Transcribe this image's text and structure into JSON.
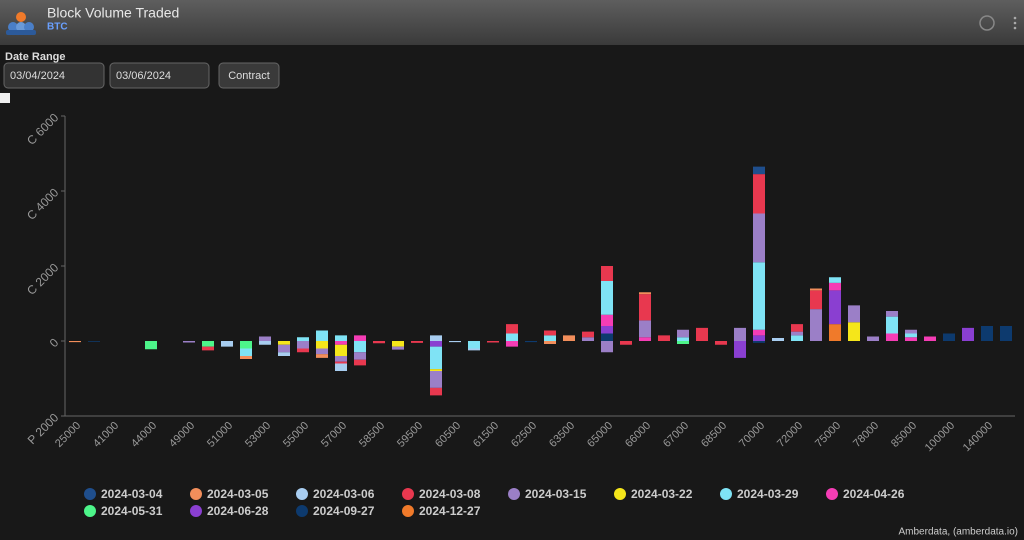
{
  "header": {
    "title": "Block Volume Traded",
    "subtitle": "BTC"
  },
  "controls": {
    "label": "Date Range",
    "start": "03/04/2024",
    "end": "03/06/2024",
    "button": "Contract"
  },
  "footer": "Amberdata, (amberdata.io)",
  "chart_data": {
    "type": "bar",
    "stacked": true,
    "categories": [
      "25000",
      null,
      "41000",
      null,
      "44000",
      null,
      "49000",
      null,
      "51000",
      null,
      "53000",
      null,
      "55000",
      null,
      "57000",
      null,
      "58500",
      null,
      "59500",
      null,
      "60500",
      null,
      "61500",
      null,
      "62500",
      null,
      "63500",
      null,
      "65000",
      null,
      "66000",
      null,
      "67000",
      null,
      "68500",
      null,
      "70000",
      null,
      "72000",
      null,
      "75000",
      null,
      "78000",
      null,
      "85000",
      null,
      "100000",
      null,
      "140000",
      null
    ],
    "ylim": [
      -2000,
      6000
    ],
    "yticks": [
      {
        "value": -2000,
        "label": "P 2000"
      },
      0,
      {
        "value": 2000,
        "label": "C 2000"
      },
      {
        "value": 4000,
        "label": "C 4000"
      },
      {
        "value": 6000,
        "label": "C 6000"
      }
    ],
    "grid": false,
    "legend": "bottom",
    "series": [
      {
        "name": "2024-03-04",
        "color": "#1f4e8c",
        "values": [
          0,
          0,
          0,
          0,
          0,
          0,
          0,
          0,
          0,
          0,
          0,
          0,
          0,
          0,
          0,
          0,
          0,
          0,
          0,
          0,
          0,
          0,
          0,
          0,
          0,
          0,
          0,
          0,
          0,
          0,
          0,
          0,
          0,
          0,
          0,
          0,
          200,
          0,
          0,
          0,
          0,
          0,
          0,
          0,
          0,
          0,
          0,
          0,
          0,
          0
        ]
      },
      {
        "name": "2024-03-05",
        "color": "#f28e5b",
        "values": [
          -30,
          0,
          0,
          0,
          0,
          0,
          0,
          0,
          0,
          -80,
          0,
          0,
          0,
          -100,
          0,
          0,
          0,
          0,
          0,
          0,
          0,
          0,
          0,
          0,
          0,
          -80,
          150,
          0,
          0,
          0,
          50,
          0,
          0,
          0,
          0,
          0,
          0,
          0,
          0,
          50,
          0,
          0,
          0,
          0,
          0,
          0,
          0,
          0,
          0,
          0
        ]
      },
      {
        "name": "2024-03-06",
        "color": "#a8cdf0",
        "values": [
          0,
          0,
          0,
          0,
          0,
          0,
          0,
          0,
          -150,
          0,
          -100,
          -100,
          0,
          0,
          -200,
          0,
          0,
          0,
          0,
          150,
          -30,
          -50,
          0,
          0,
          0,
          0,
          0,
          0,
          0,
          0,
          0,
          0,
          0,
          0,
          0,
          0,
          0,
          80,
          0,
          0,
          0,
          0,
          0,
          0,
          0,
          0,
          0,
          0,
          0,
          0
        ]
      },
      {
        "name": "2024-03-08",
        "color": "#e8384f",
        "values": [
          0,
          0,
          0,
          0,
          0,
          0,
          0,
          -100,
          0,
          0,
          0,
          0,
          -100,
          0,
          -50,
          -150,
          -60,
          0,
          -50,
          -200,
          0,
          0,
          -40,
          250,
          0,
          130,
          0,
          150,
          400,
          -100,
          700,
          150,
          0,
          350,
          -100,
          0,
          1050,
          0,
          200,
          500,
          0,
          0,
          0,
          0,
          0,
          0,
          0,
          0,
          0,
          0
        ]
      },
      {
        "name": "2024-03-15",
        "color": "#9b7fc7",
        "values": [
          0,
          0,
          0,
          0,
          0,
          0,
          -40,
          0,
          0,
          0,
          120,
          -200,
          -200,
          -150,
          -150,
          -200,
          0,
          -80,
          0,
          -450,
          0,
          0,
          0,
          0,
          0,
          0,
          0,
          100,
          -300,
          0,
          450,
          0,
          200,
          0,
          0,
          350,
          1300,
          0,
          100,
          850,
          0,
          450,
          120,
          150,
          100,
          0,
          0,
          0,
          0,
          0
        ]
      },
      {
        "name": "2024-03-22",
        "color": "#f5e61a",
        "values": [
          0,
          0,
          0,
          0,
          0,
          0,
          0,
          0,
          0,
          0,
          0,
          -100,
          0,
          -200,
          -300,
          0,
          0,
          -150,
          0,
          -50,
          0,
          0,
          0,
          0,
          0,
          0,
          0,
          0,
          0,
          0,
          0,
          0,
          0,
          0,
          0,
          0,
          0,
          0,
          0,
          0,
          0,
          500,
          0,
          0,
          0,
          0,
          0,
          0,
          0,
          0
        ]
      },
      {
        "name": "2024-03-29",
        "color": "#7fe3f5",
        "values": [
          0,
          0,
          0,
          0,
          0,
          0,
          0,
          0,
          0,
          -200,
          0,
          0,
          100,
          280,
          150,
          -300,
          0,
          0,
          0,
          -600,
          0,
          -200,
          0,
          200,
          0,
          150,
          0,
          0,
          900,
          0,
          0,
          0,
          100,
          0,
          0,
          0,
          1800,
          0,
          150,
          0,
          150,
          0,
          0,
          450,
          100,
          0,
          0,
          0,
          0,
          0
        ]
      },
      {
        "name": "2024-04-26",
        "color": "#f53db5",
        "values": [
          0,
          0,
          0,
          0,
          0,
          0,
          0,
          0,
          0,
          0,
          0,
          0,
          0,
          0,
          -100,
          150,
          0,
          0,
          0,
          0,
          0,
          0,
          0,
          -150,
          0,
          0,
          0,
          0,
          300,
          0,
          100,
          0,
          0,
          0,
          0,
          0,
          150,
          0,
          0,
          0,
          200,
          0,
          0,
          200,
          100,
          120,
          0,
          0,
          0,
          0
        ]
      },
      {
        "name": "2024-05-31",
        "color": "#4df58a",
        "values": [
          0,
          0,
          0,
          0,
          -220,
          0,
          0,
          -150,
          0,
          -200,
          0,
          0,
          0,
          0,
          0,
          0,
          0,
          0,
          0,
          0,
          0,
          0,
          0,
          0,
          0,
          0,
          0,
          0,
          0,
          0,
          0,
          0,
          -80,
          0,
          0,
          0,
          0,
          0,
          0,
          0,
          0,
          0,
          0,
          0,
          0,
          0,
          0,
          0,
          0,
          0
        ]
      },
      {
        "name": "2024-06-28",
        "color": "#8a3fd1",
        "values": [
          0,
          0,
          0,
          0,
          0,
          0,
          0,
          0,
          0,
          0,
          0,
          0,
          0,
          0,
          0,
          0,
          0,
          0,
          0,
          -150,
          0,
          0,
          0,
          0,
          0,
          0,
          0,
          0,
          200,
          0,
          0,
          0,
          0,
          0,
          0,
          -450,
          150,
          0,
          0,
          0,
          900,
          0,
          0,
          0,
          0,
          0,
          0,
          350,
          0,
          0
        ]
      },
      {
        "name": "2024-09-27",
        "color": "#0d3a6e",
        "values": [
          0,
          -20,
          0,
          0,
          0,
          0,
          0,
          0,
          0,
          0,
          0,
          0,
          0,
          0,
          0,
          0,
          0,
          0,
          0,
          0,
          0,
          0,
          0,
          0,
          -30,
          0,
          0,
          0,
          200,
          0,
          0,
          0,
          0,
          0,
          0,
          0,
          -50,
          0,
          0,
          0,
          0,
          0,
          0,
          0,
          0,
          0,
          200,
          0,
          400,
          400
        ]
      },
      {
        "name": "2024-12-27",
        "color": "#f07a2a",
        "values": [
          0,
          0,
          0,
          0,
          0,
          0,
          0,
          0,
          0,
          0,
          0,
          0,
          0,
          0,
          0,
          0,
          0,
          0,
          0,
          0,
          0,
          0,
          0,
          0,
          0,
          0,
          0,
          0,
          0,
          0,
          0,
          0,
          0,
          0,
          0,
          0,
          0,
          0,
          0,
          0,
          450,
          0,
          0,
          0,
          0,
          0,
          0,
          0,
          0,
          0
        ]
      }
    ]
  }
}
